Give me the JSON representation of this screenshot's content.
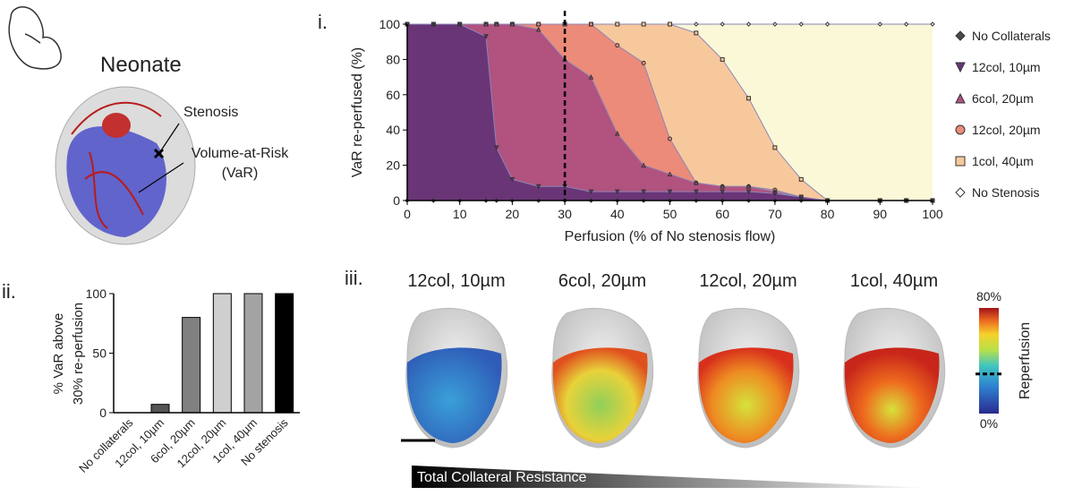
{
  "chart_data": [
    {
      "type": "area",
      "title": "i.",
      "xlabel": "Perfusion (% of No stenosis flow)",
      "ylabel": "VaR re-perfused (%)",
      "x": [
        0,
        5,
        10,
        15,
        17,
        20,
        25,
        30,
        35,
        40,
        45,
        50,
        55,
        60,
        65,
        70,
        75,
        80,
        90,
        95,
        100
      ],
      "series": [
        {
          "name": "No Stenosis",
          "color": "#fbf8d8",
          "marker": "diamond-open",
          "values": [
            100,
            100,
            100,
            100,
            100,
            100,
            100,
            100,
            100,
            100,
            100,
            100,
            100,
            100,
            100,
            100,
            100,
            100,
            100,
            100,
            100
          ]
        },
        {
          "name": "1col, 40µm",
          "color": "#f8c89d",
          "marker": "square",
          "values": [
            100,
            100,
            100,
            100,
            100,
            100,
            100,
            100,
            100,
            100,
            100,
            100,
            95,
            80,
            58,
            30,
            12,
            0,
            0,
            0,
            0
          ]
        },
        {
          "name": "12col, 20µm",
          "color": "#ec8b79",
          "marker": "circle",
          "values": [
            100,
            100,
            100,
            100,
            100,
            100,
            100,
            100,
            100,
            88,
            78,
            35,
            10,
            8,
            8,
            6,
            2,
            0,
            0,
            0,
            0
          ]
        },
        {
          "name": "6col, 20µm",
          "color": "#b1527f",
          "marker": "triangle-up",
          "values": [
            100,
            100,
            100,
            100,
            100,
            100,
            97,
            80,
            70,
            38,
            20,
            15,
            10,
            8,
            8,
            5,
            2,
            0,
            0,
            0,
            0
          ]
        },
        {
          "name": "12col, 10µm",
          "color": "#6a3577",
          "marker": "triangle-down",
          "values": [
            100,
            100,
            100,
            93,
            30,
            12,
            8,
            8,
            5,
            5,
            5,
            5,
            5,
            5,
            5,
            4,
            2,
            0,
            0,
            0,
            0
          ]
        },
        {
          "name": "No Collaterals",
          "color": "#4a4a4a",
          "marker": "diamond",
          "values": [
            0,
            0,
            0,
            0,
            0,
            0,
            0,
            0,
            0,
            0,
            0,
            0,
            0,
            0,
            0,
            0,
            0,
            0,
            0,
            0,
            0
          ]
        }
      ],
      "xlim": [
        0,
        100
      ],
      "xticks": [
        0,
        10,
        20,
        30,
        40,
        50,
        60,
        70,
        80,
        90,
        100
      ],
      "ylim": [
        0,
        100
      ],
      "yticks": [
        0,
        20,
        40,
        60,
        80,
        100
      ],
      "vline": 30
    },
    {
      "type": "bar",
      "title": "ii.",
      "ylabel": [
        "% VaR above",
        "30% re-perfusion"
      ],
      "categories": [
        "No collaterals",
        "12col, 10µm",
        "6col, 20µm",
        "12col, 20µm",
        "1col, 40µm",
        "No stenosis"
      ],
      "values": [
        0,
        7,
        80,
        100,
        100,
        100
      ],
      "colors": [
        "#ffffff",
        "#555555",
        "#808080",
        "#cfcfcf",
        "#a3a3a3",
        "#000000"
      ],
      "ylim": [
        0,
        100
      ],
      "yticks": [
        0,
        50,
        100
      ]
    }
  ],
  "neonate": {
    "title": "Neonate",
    "stenosis": "Stenosis",
    "var": [
      "Volume-at-Risk",
      "(VaR)"
    ]
  },
  "panel_iii": {
    "label": "iii.",
    "titles": [
      "12col, 10µm",
      "6col, 20µm",
      "12col, 20µm",
      "1col, 40µm"
    ],
    "colorbar": {
      "label": "Reperfusion",
      "lim": [
        0,
        80
      ],
      "ticks": [
        {
          "value": 80,
          "label": "80%"
        },
        {
          "value": 0,
          "label": "0%"
        }
      ],
      "threshold": 30
    },
    "arrow": "Total Collateral Resistance"
  }
}
